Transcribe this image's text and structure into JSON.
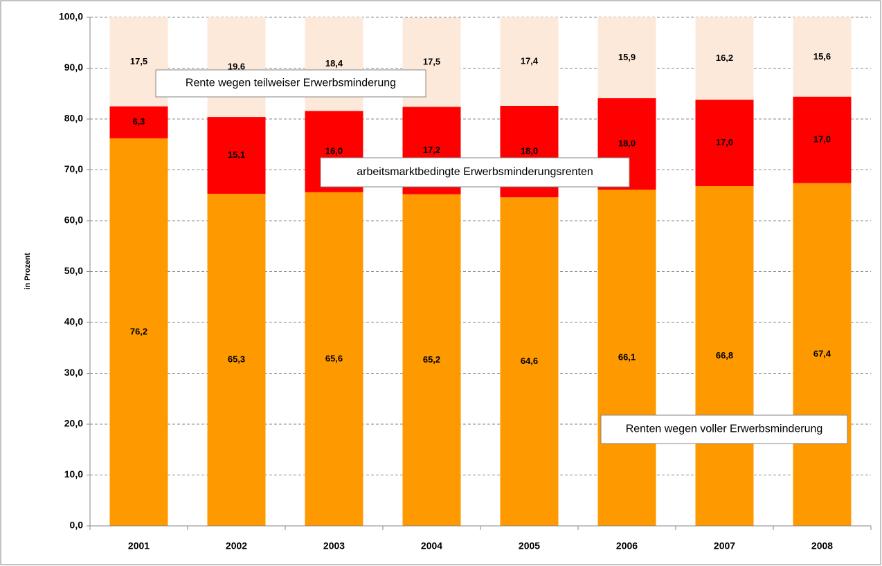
{
  "chart_data": {
    "type": "stacked_bar",
    "y_label": "in Prozent",
    "categories": [
      "2001",
      "2002",
      "2003",
      "2004",
      "2005",
      "2006",
      "2007",
      "2008"
    ],
    "series": [
      {
        "name": "Renten wegen voller Erwerbsminderung",
        "color": "#ff9900",
        "values": [
          76.2,
          65.3,
          65.6,
          65.2,
          64.6,
          66.1,
          66.8,
          67.4
        ],
        "value_labels": [
          "76,2",
          "65,3",
          "65,6",
          "65,2",
          "64,6",
          "66,1",
          "66,8",
          "67,4"
        ]
      },
      {
        "name": "arbeitsmarktbedingte Erwerbsminderungsrenten",
        "color": "#ff0000",
        "values": [
          6.3,
          15.1,
          16.0,
          17.2,
          18.0,
          18.0,
          17.0,
          17.0
        ],
        "value_labels": [
          "6,3",
          "15,1",
          "16,0",
          "17,2",
          "18,0",
          "18,0",
          "17,0",
          "17,0"
        ]
      },
      {
        "name": "Rente wegen teilweiser Erwerbsminderung",
        "color": "#fde9d9",
        "values": [
          17.5,
          19.6,
          18.4,
          17.5,
          17.4,
          15.9,
          16.2,
          15.6
        ],
        "value_labels": [
          "17,5",
          "19,6",
          "18,4",
          "17,5",
          "17,4",
          "15,9",
          "16,2",
          "15,6"
        ]
      }
    ],
    "ylim": [
      0,
      100
    ],
    "yticks": [
      {
        "value": 0,
        "label": "0,0"
      },
      {
        "value": 10,
        "label": "10,0"
      },
      {
        "value": 20,
        "label": "20,0"
      },
      {
        "value": 30,
        "label": "30,0"
      },
      {
        "value": 40,
        "label": "40,0"
      },
      {
        "value": 50,
        "label": "50,0"
      },
      {
        "value": 60,
        "label": "60,0"
      },
      {
        "value": 70,
        "label": "70,0"
      },
      {
        "value": 80,
        "label": "80,0"
      },
      {
        "value": 90,
        "label": "90,0"
      },
      {
        "value": 100,
        "label": "100,0"
      }
    ],
    "grid": true
  }
}
